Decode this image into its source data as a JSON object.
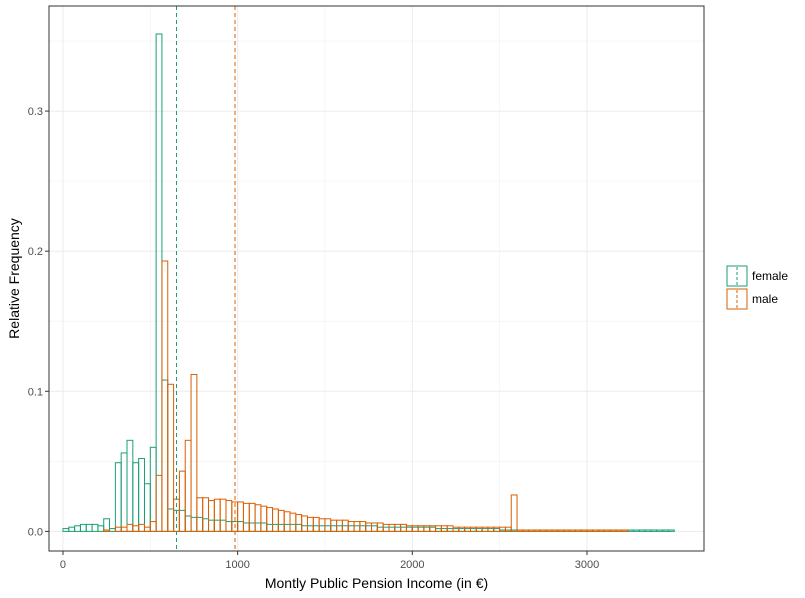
{
  "chart_data": {
    "type": "bar",
    "subtype": "histogram-step",
    "title": "",
    "xlabel": "Montly Public Pension Income (in €)",
    "ylabel": "Relative Frequency",
    "xlim": [
      -80,
      3670
    ],
    "ylim": [
      -0.014,
      0.375
    ],
    "x_ticks": [
      0,
      1000,
      2000,
      3000
    ],
    "x_tick_labels": [
      "0",
      "1000",
      "2000",
      "3000"
    ],
    "y_ticks": [
      0.0,
      0.1,
      0.2,
      0.3
    ],
    "y_tick_labels": [
      "0.0",
      "0.1",
      "0.2",
      "0.3"
    ],
    "grid": true,
    "legend": "right",
    "bin_start": 0,
    "bin_width": 33.33,
    "series": [
      {
        "name": "female",
        "color": "#1b9e77",
        "mean_line": 650,
        "values": [
          0.002,
          0.003,
          0.004,
          0.005,
          0.005,
          0.005,
          0.004,
          0.009,
          0.002,
          0.049,
          0.056,
          0.065,
          0.049,
          0.052,
          0.034,
          0.06,
          0.355,
          0.108,
          0.016,
          0.015,
          0.015,
          0.011,
          0.01,
          0.01,
          0.009,
          0.008,
          0.008,
          0.008,
          0.007,
          0.007,
          0.007,
          0.006,
          0.006,
          0.006,
          0.006,
          0.005,
          0.005,
          0.005,
          0.005,
          0.005,
          0.005,
          0.004,
          0.004,
          0.004,
          0.004,
          0.004,
          0.004,
          0.004,
          0.004,
          0.004,
          0.004,
          0.004,
          0.004,
          0.004,
          0.003,
          0.003,
          0.003,
          0.003,
          0.003,
          0.003,
          0.003,
          0.003,
          0.003,
          0.003,
          0.002,
          0.002,
          0.002,
          0.002,
          0.002,
          0.002,
          0.002,
          0.002,
          0.002,
          0.002,
          0.002,
          0.001,
          0.001,
          0.001,
          0.001,
          0.001,
          0.001,
          0.001,
          0.001,
          0.001,
          0.001,
          0.001,
          0.001,
          0.001,
          0.001,
          0.001,
          0.001,
          0.001,
          0.001,
          0.001,
          0.001,
          0.001,
          0.001,
          0.001,
          0.001,
          0.001,
          0.001,
          0.001,
          0.001,
          0.001,
          0.001
        ]
      },
      {
        "name": "male",
        "color": "#d95f02",
        "mean_line": 985,
        "values": [
          0.0,
          0.0,
          0.0,
          0.0,
          0.0,
          0.0,
          0.0,
          0.001,
          0.0,
          0.003,
          0.003,
          0.005,
          0.004,
          0.005,
          0.003,
          0.007,
          0.04,
          0.193,
          0.105,
          0.023,
          0.043,
          0.065,
          0.112,
          0.024,
          0.024,
          0.022,
          0.023,
          0.023,
          0.022,
          0.021,
          0.021,
          0.02,
          0.02,
          0.019,
          0.018,
          0.017,
          0.016,
          0.015,
          0.014,
          0.013,
          0.012,
          0.011,
          0.01,
          0.01,
          0.009,
          0.009,
          0.008,
          0.008,
          0.008,
          0.007,
          0.007,
          0.007,
          0.006,
          0.006,
          0.006,
          0.005,
          0.005,
          0.005,
          0.005,
          0.004,
          0.004,
          0.004,
          0.004,
          0.004,
          0.004,
          0.004,
          0.004,
          0.003,
          0.003,
          0.003,
          0.003,
          0.003,
          0.003,
          0.003,
          0.003,
          0.003,
          0.003,
          0.026,
          0.001,
          0.001,
          0.001,
          0.001,
          0.001,
          0.001,
          0.001,
          0.001,
          0.001,
          0.001,
          0.001,
          0.001,
          0.001,
          0.001,
          0.001,
          0.001,
          0.001,
          0.001,
          0.001,
          0.0,
          0.0,
          0.0,
          0.0,
          0.0,
          0.0,
          0.0,
          0.0
        ]
      }
    ]
  }
}
